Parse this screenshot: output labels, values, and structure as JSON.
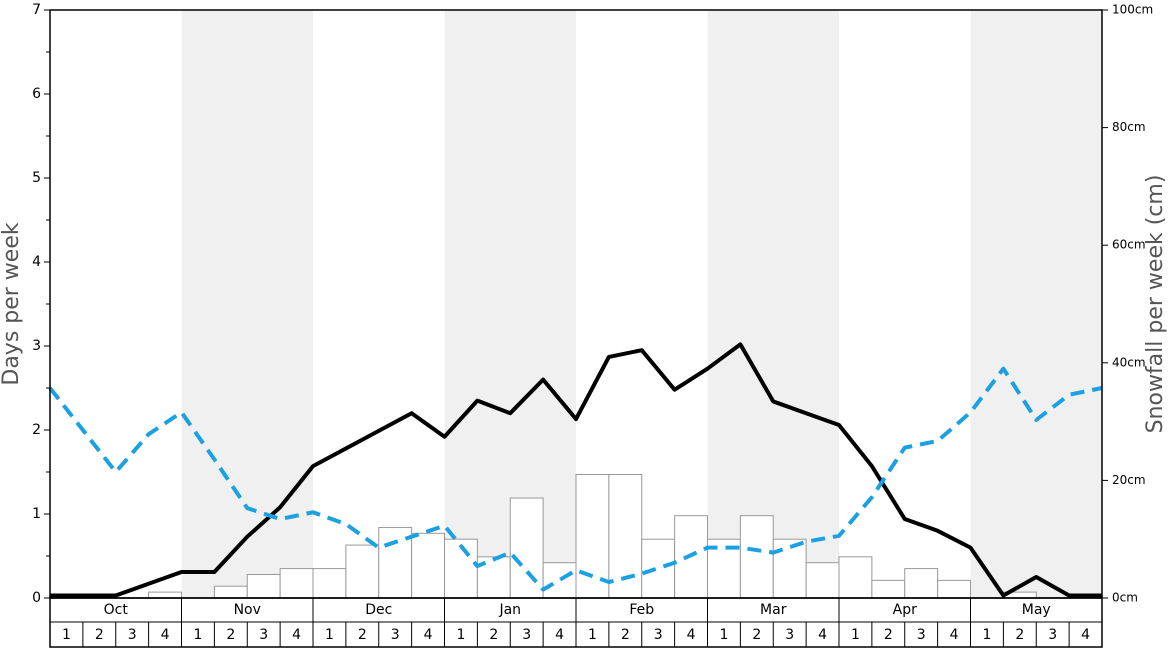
{
  "chart_data": {
    "type": "bar-line",
    "ylabel": "Days per week",
    "y2label": "Snowfall per week (cm)",
    "months": [
      "Oct",
      "Nov",
      "Dec",
      "Jan",
      "Feb",
      "Mar",
      "Apr",
      "May"
    ],
    "weeks": [
      "1",
      "2",
      "3",
      "4"
    ],
    "shaded_months": [
      1,
      3,
      5,
      7
    ],
    "xlim": [
      0,
      32
    ],
    "ylim": [
      0,
      7
    ],
    "yticks": [
      0,
      1,
      2,
      3,
      4,
      5,
      6,
      7
    ],
    "yminorticks": [
      0.5,
      1.5,
      2.5,
      3.5,
      4.5,
      5.5,
      6.5
    ],
    "y2lim": [
      0,
      100
    ],
    "y2ticks": [
      {
        "value": 0,
        "label": "0cm"
      },
      {
        "value": 20,
        "label": "20cm"
      },
      {
        "value": 40,
        "label": "40cm"
      },
      {
        "value": 60,
        "label": "60cm"
      },
      {
        "value": 80,
        "label": "80cm"
      },
      {
        "value": 100,
        "label": "100cm"
      }
    ],
    "bars": {
      "axis": "y2",
      "color": "#ffffff",
      "edgecolor": "#999999",
      "values": [
        0,
        0,
        0,
        1,
        0,
        2,
        4,
        5,
        5,
        9,
        12,
        11,
        10,
        7,
        17,
        6,
        21,
        21,
        10,
        14,
        10,
        14,
        10,
        6,
        7,
        3,
        5,
        3,
        0,
        1,
        0,
        0
      ]
    },
    "lines": [
      {
        "color": "#000000",
        "dash": false,
        "x": [
          0,
          1,
          2,
          3,
          4,
          5,
          6,
          7,
          8,
          9,
          10,
          11,
          12,
          13,
          14,
          15,
          16,
          17,
          18,
          19,
          20,
          21,
          22,
          23,
          24,
          25,
          26,
          27,
          28,
          29,
          30,
          31,
          32
        ],
        "values": [
          0.03,
          0.03,
          0.03,
          0.17,
          0.31,
          0.31,
          0.73,
          1.08,
          1.57,
          1.78,
          1.99,
          2.2,
          1.92,
          2.35,
          2.2,
          2.6,
          2.13,
          2.87,
          2.95,
          2.48,
          2.73,
          3.02,
          2.34,
          2.2,
          2.06,
          1.57,
          0.94,
          0.8,
          0.6,
          0.03,
          0.25,
          0.03,
          0.03
        ]
      },
      {
        "color": "#1ba1e2",
        "dash": true,
        "x": [
          0,
          1,
          2,
          3,
          4,
          5,
          6,
          7,
          8,
          9,
          10,
          11,
          12,
          13,
          14,
          15,
          16,
          17,
          18,
          19,
          20,
          21,
          22,
          23,
          24,
          25,
          26,
          27,
          28,
          29,
          30,
          31,
          32
        ],
        "values": [
          2.5,
          2.0,
          1.5,
          1.95,
          2.21,
          1.65,
          1.07,
          0.94,
          1.02,
          0.88,
          0.6,
          0.73,
          0.86,
          0.38,
          0.54,
          0.1,
          0.33,
          0.19,
          0.29,
          0.42,
          0.6,
          0.6,
          0.54,
          0.67,
          0.74,
          1.2,
          1.79,
          1.87,
          2.21,
          2.73,
          2.12,
          2.42,
          2.5
        ]
      }
    ]
  }
}
